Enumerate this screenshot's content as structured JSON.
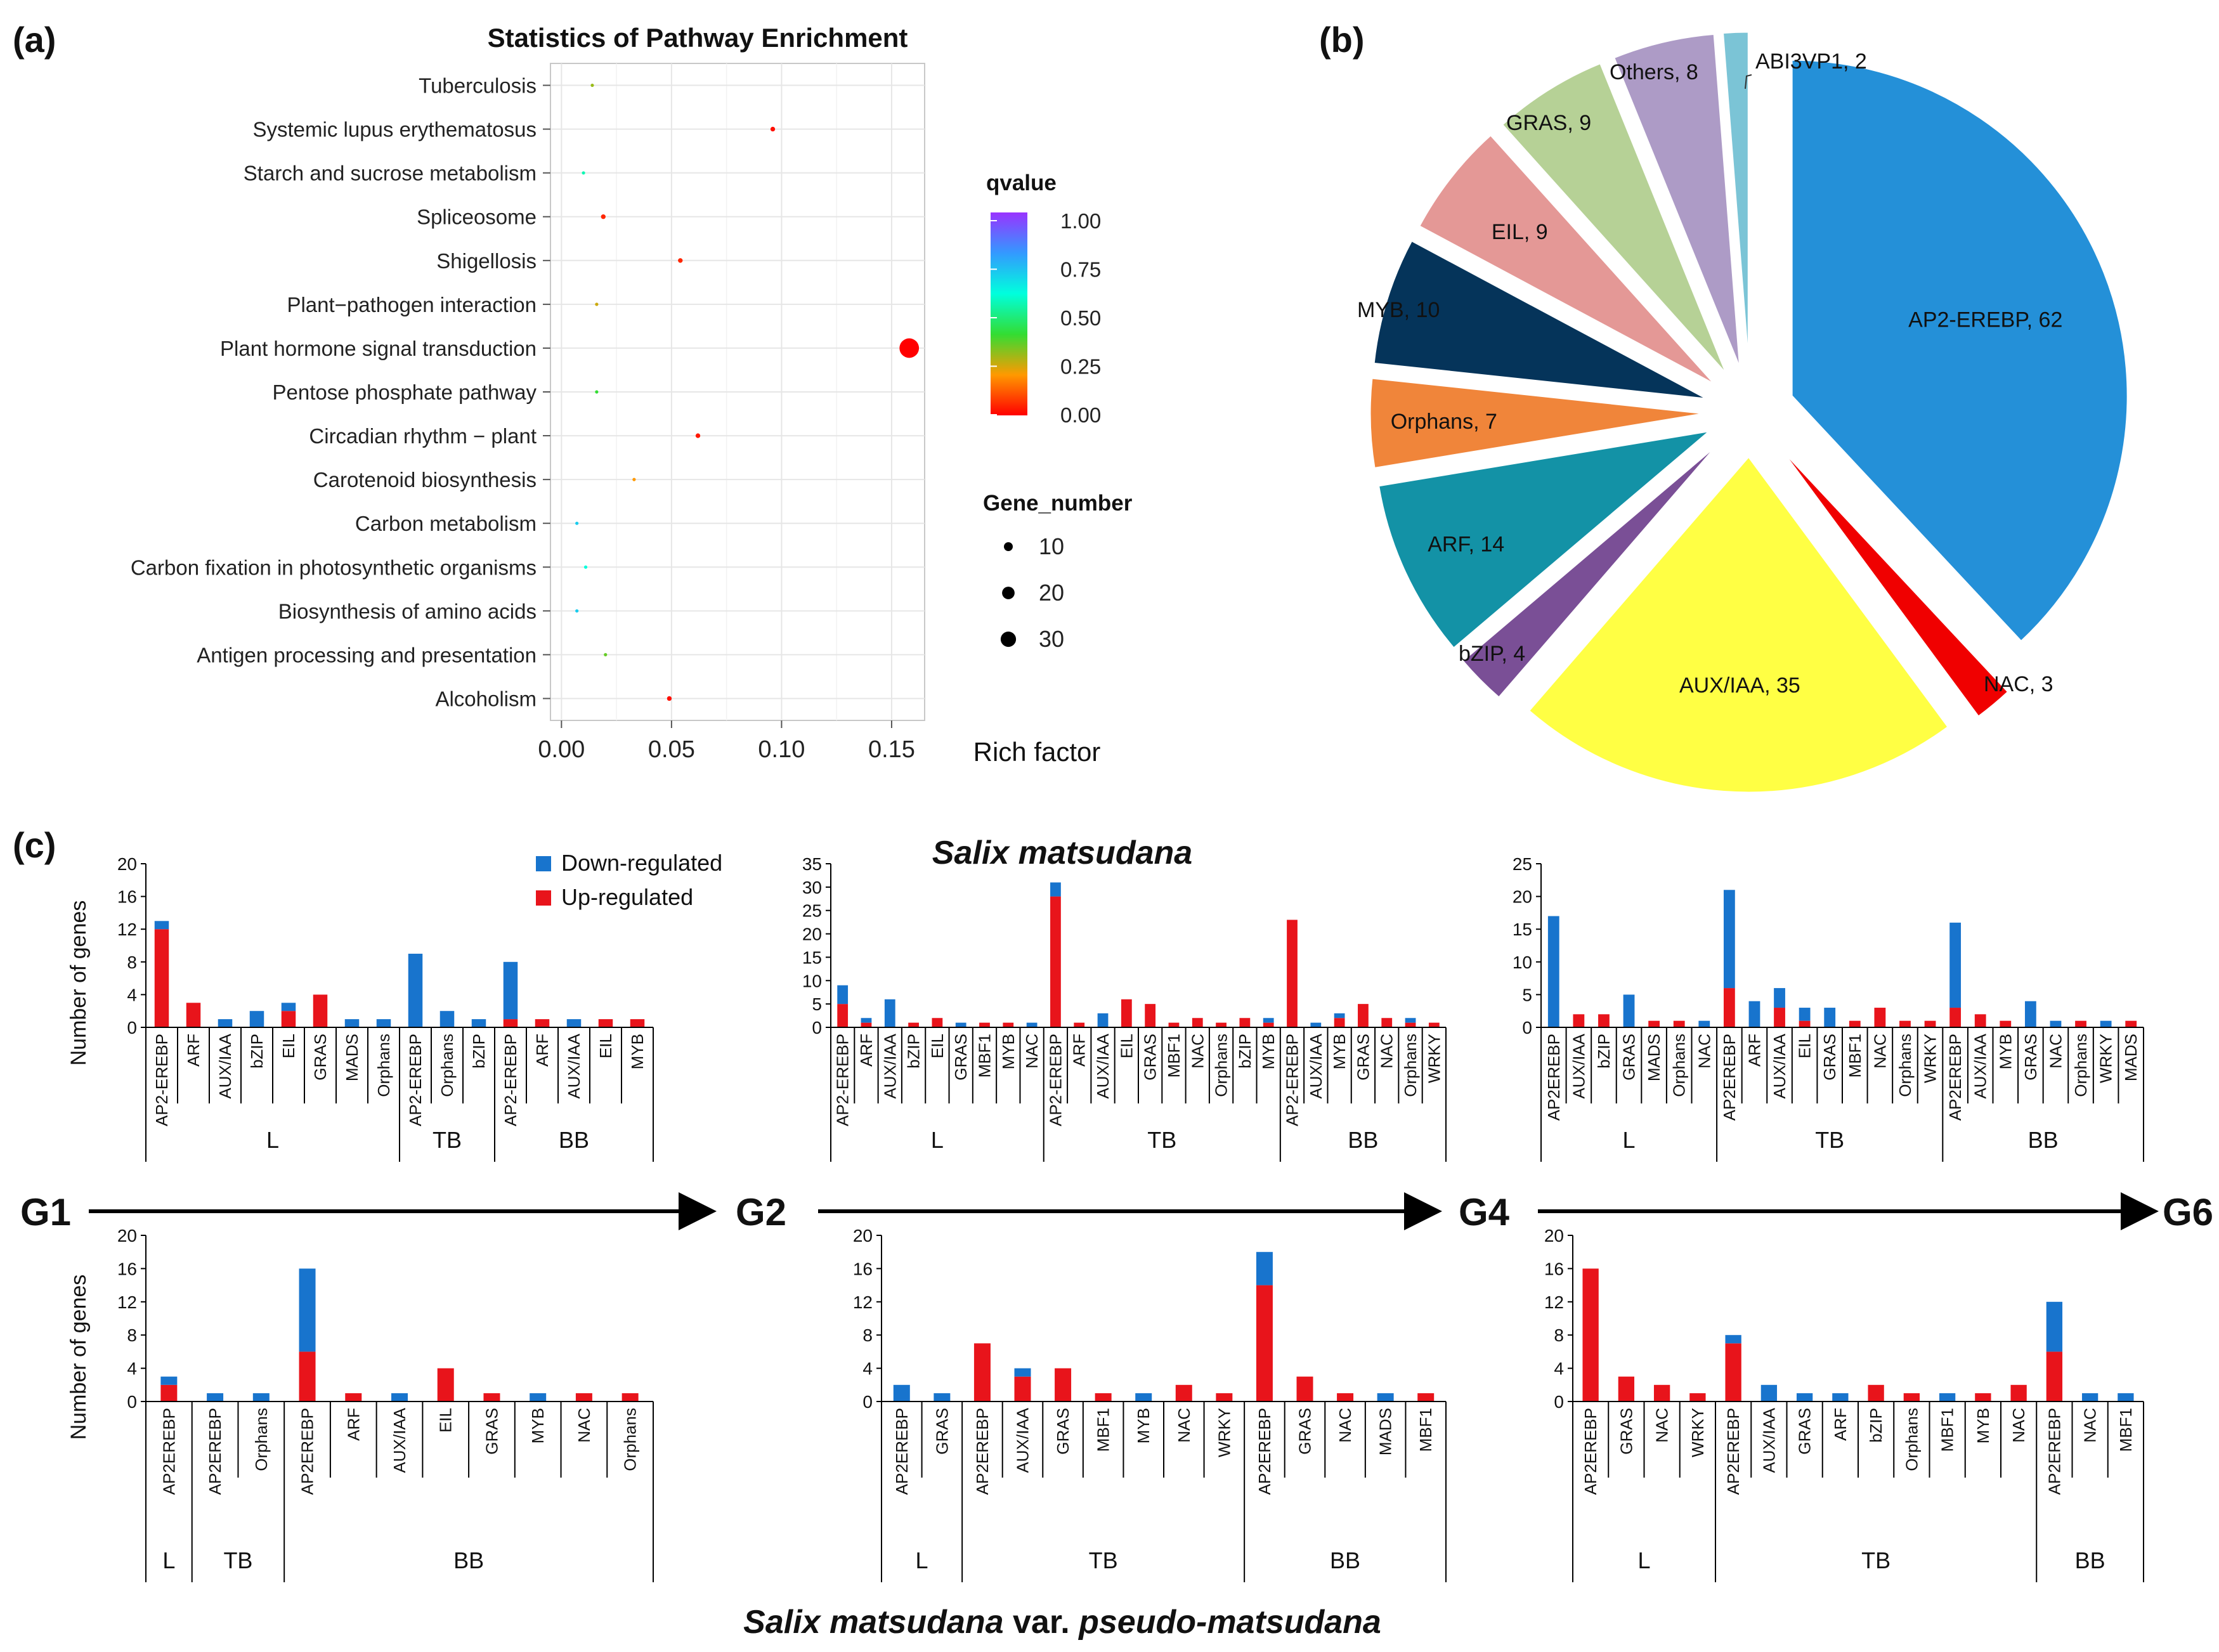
{
  "panel_labels": [
    "(a)",
    "(b)",
    "(c)"
  ],
  "colors": {
    "up": "#e8141b",
    "down": "#1874cd"
  },
  "chart_data": [
    {
      "id": "a",
      "type": "scatter",
      "title": "Statistics of Pathway Enrichment",
      "xlabel": "Rich factor",
      "ylabel": "",
      "xlim": [
        -0.005,
        0.165
      ],
      "xticks": [
        "0.00",
        "0.05",
        "0.10",
        "0.15"
      ],
      "grid": true,
      "legend_q_title": "qvalue",
      "legend_q_ticks": [
        "1.00",
        "0.75",
        "0.50",
        "0.25",
        "0.00"
      ],
      "legend_n_title": "Gene_number",
      "legend_n_ticks": [
        "10",
        "20",
        "30"
      ],
      "points": [
        {
          "term": "Tuberculosis",
          "x": 0.014,
          "q": 0.3,
          "n": 1
        },
        {
          "term": "Systemic lupus erythematosus",
          "x": 0.096,
          "q": 0.02,
          "n": 2
        },
        {
          "term": "Starch and sucrose metabolism",
          "x": 0.01,
          "q": 0.55,
          "n": 1
        },
        {
          "term": "Spliceosome",
          "x": 0.019,
          "q": 0.05,
          "n": 2
        },
        {
          "term": "Shigellosis",
          "x": 0.054,
          "q": 0.05,
          "n": 2
        },
        {
          "term": "Plant−pathogen interaction",
          "x": 0.016,
          "q": 0.25,
          "n": 1
        },
        {
          "term": "Plant hormone signal transduction",
          "x": 0.158,
          "q": 0.0,
          "n": 35
        },
        {
          "term": "Pentose phosphate pathway",
          "x": 0.016,
          "q": 0.4,
          "n": 1
        },
        {
          "term": "Circadian rhythm − plant",
          "x": 0.062,
          "q": 0.03,
          "n": 2
        },
        {
          "term": "Carotenoid biosynthesis",
          "x": 0.033,
          "q": 0.2,
          "n": 1
        },
        {
          "term": "Carbon metabolism",
          "x": 0.007,
          "q": 0.7,
          "n": 1
        },
        {
          "term": "Carbon fixation in photosynthetic organisms",
          "x": 0.011,
          "q": 0.6,
          "n": 1
        },
        {
          "term": "Biosynthesis of amino acids",
          "x": 0.007,
          "q": 0.7,
          "n": 1
        },
        {
          "term": "Antigen processing and presentation",
          "x": 0.02,
          "q": 0.35,
          "n": 1
        },
        {
          "term": "Alcoholism",
          "x": 0.049,
          "q": 0.02,
          "n": 2
        }
      ]
    },
    {
      "id": "b",
      "type": "pie",
      "slices": [
        {
          "label": "AP2-EREBP, 62",
          "value": 62,
          "color": "#2490d8"
        },
        {
          "label": "NAC, 3",
          "value": 3,
          "color": "#f00000"
        },
        {
          "label": "AUX/IAA, 35",
          "value": 35,
          "color": "#ffff44"
        },
        {
          "label": "bZIP, 4",
          "value": 4,
          "color": "#7a4f96"
        },
        {
          "label": "ARF, 14",
          "value": 14,
          "color": "#1392a6"
        },
        {
          "label": "Orphans, 7",
          "value": 7,
          "color": "#f0853a"
        },
        {
          "label": "MYB, 10",
          "value": 10,
          "color": "#05345a"
        },
        {
          "label": "EIL, 9",
          "value": 9,
          "color": "#e49896"
        },
        {
          "label": "GRAS, 9",
          "value": 9,
          "color": "#b6d196"
        },
        {
          "label": "Others, 8",
          "value": 8,
          "color": "#ad9bc6"
        },
        {
          "label": "ABI3VP1, 2",
          "value": 2,
          "color": "#7bc4d6"
        }
      ]
    },
    {
      "id": "c",
      "type": "bar",
      "stacked": true,
      "title": "Salix matsudana",
      "bottom_title_pre": "Salix matsudana",
      "bottom_title_mid": " var. ",
      "bottom_title_post": "pseudo-matsudana",
      "ylabel": "Number of genes",
      "legend": [
        "Down-regulated",
        "Up-regulated"
      ],
      "stages": [
        "G1",
        "G2",
        "G4",
        "G6"
      ],
      "subplots": [
        {
          "ylim": [
            0,
            20
          ],
          "yticks": [
            "0",
            "4",
            "8",
            "12",
            "16",
            "20"
          ],
          "categories": [
            "AP2-EREBP",
            "ARF",
            "AUX/IAA",
            "bZIP",
            "EIL",
            "GRAS",
            "MADS",
            "Orphans",
            "AP2-EREBP",
            "Orphans",
            "bZIP",
            "AP2-EREBP",
            "ARF",
            "AUX/IAA",
            "EIL",
            "MYB"
          ],
          "up": [
            12,
            3,
            0,
            0,
            2,
            4,
            0,
            0,
            0,
            0,
            0,
            1,
            1,
            0,
            1,
            1
          ],
          "down": [
            1,
            0,
            1,
            2,
            1,
            0,
            1,
            1,
            9,
            2,
            1,
            7,
            0,
            1,
            0,
            0
          ],
          "groups": [
            {
              "name": "L",
              "count": 8
            },
            {
              "name": "TB",
              "count": 3
            },
            {
              "name": "BB",
              "count": 5
            }
          ]
        },
        {
          "ylim": [
            0,
            35
          ],
          "yticks": [
            "0",
            "5",
            "10",
            "15",
            "20",
            "25",
            "30",
            "35"
          ],
          "categories": [
            "AP2-EREBP",
            "ARF",
            "AUX/IAA",
            "bZIP",
            "EIL",
            "GRAS",
            "MBF1",
            "MYB",
            "NAC",
            "AP2-EREBP",
            "ARF",
            "AUX/IAA",
            "EIL",
            "GRAS",
            "MBF1",
            "NAC",
            "Orphans",
            "bZIP",
            "MYB",
            "AP2-EREBP",
            "AUX/IAA",
            "MYB",
            "GRAS",
            "NAC",
            "Orphans",
            "WRKY"
          ],
          "up": [
            5,
            1,
            0,
            1,
            2,
            0,
            1,
            1,
            0,
            28,
            1,
            0,
            6,
            5,
            1,
            2,
            1,
            2,
            1,
            23,
            0,
            2,
            5,
            2,
            1,
            1
          ],
          "down": [
            4,
            1,
            6,
            0,
            0,
            1,
            0,
            0,
            1,
            3,
            0,
            3,
            0,
            0,
            0,
            0,
            0,
            0,
            1,
            0,
            1,
            1,
            0,
            0,
            1,
            0
          ],
          "groups": [
            {
              "name": "L",
              "count": 9
            },
            {
              "name": "TB",
              "count": 10
            },
            {
              "name": "BB",
              "count": 7
            }
          ]
        },
        {
          "ylim": [
            0,
            25
          ],
          "yticks": [
            "0",
            "5",
            "10",
            "15",
            "20",
            "25"
          ],
          "categories": [
            "AP2EREBP",
            "AUX/IAA",
            "bZIP",
            "GRAS",
            "MADS",
            "Orphans",
            "NAC",
            "AP2EREBP",
            "ARF",
            "AUX/IAA",
            "EIL",
            "GRAS",
            "MBF1",
            "NAC",
            "Orphans",
            "WRKY",
            "AP2EREBP",
            "AUX/IAA",
            "MYB",
            "GRAS",
            "NAC",
            "Orphans",
            "WRKY",
            "MADS"
          ],
          "up": [
            0,
            2,
            2,
            0,
            1,
            1,
            0,
            6,
            0,
            3,
            1,
            0,
            1,
            3,
            1,
            1,
            3,
            2,
            1,
            0,
            0,
            1,
            0,
            1
          ],
          "down": [
            17,
            0,
            0,
            5,
            0,
            0,
            1,
            15,
            4,
            3,
            2,
            3,
            0,
            0,
            0,
            0,
            13,
            0,
            0,
            4,
            1,
            0,
            1,
            0
          ],
          "groups": [
            {
              "name": "L",
              "count": 7
            },
            {
              "name": "TB",
              "count": 9
            },
            {
              "name": "BB",
              "count": 8
            }
          ]
        },
        {
          "ylim": [
            0,
            20
          ],
          "yticks": [
            "0",
            "4",
            "8",
            "12",
            "16",
            "20"
          ],
          "categories": [
            "AP2EREBP",
            "AP2EREBP",
            "Orphans",
            "AP2EREBP",
            "ARF",
            "AUX/IAA",
            "EIL",
            "GRAS",
            "MYB",
            "NAC",
            "Orphans"
          ],
          "up": [
            2,
            0,
            0,
            6,
            1,
            0,
            4,
            1,
            0,
            1,
            1
          ],
          "down": [
            1,
            1,
            1,
            10,
            0,
            1,
            0,
            0,
            1,
            0,
            0
          ],
          "groups": [
            {
              "name": "L",
              "count": 1
            },
            {
              "name": "TB",
              "count": 2
            },
            {
              "name": "BB",
              "count": 8
            }
          ]
        },
        {
          "ylim": [
            0,
            20
          ],
          "yticks": [
            "0",
            "4",
            "8",
            "12",
            "16",
            "20"
          ],
          "categories": [
            "AP2EREBP",
            "GRAS",
            "AP2EREBP",
            "AUX/IAA",
            "GRAS",
            "MBF1",
            "MYB",
            "NAC",
            "WRKY",
            "AP2EREBP",
            "GRAS",
            "NAC",
            "MADS",
            "MBF1"
          ],
          "up": [
            0,
            0,
            7,
            3,
            4,
            1,
            0,
            2,
            1,
            14,
            3,
            1,
            0,
            1
          ],
          "down": [
            2,
            1,
            0,
            1,
            0,
            0,
            1,
            0,
            0,
            4,
            0,
            0,
            1,
            0
          ],
          "groups": [
            {
              "name": "L",
              "count": 2
            },
            {
              "name": "TB",
              "count": 7
            },
            {
              "name": "BB",
              "count": 5
            }
          ]
        },
        {
          "ylim": [
            0,
            20
          ],
          "yticks": [
            "0",
            "4",
            "8",
            "12",
            "16",
            "20"
          ],
          "categories": [
            "AP2EREBP",
            "GRAS",
            "NAC",
            "WRKY",
            "AP2EREBP",
            "AUX/IAA",
            "GRAS",
            "ARF",
            "bZIP",
            "Orphans",
            "MBF1",
            "MYB",
            "NAC",
            "AP2EREBP",
            "NAC",
            "MBF1"
          ],
          "up": [
            16,
            3,
            2,
            1,
            7,
            0,
            0,
            0,
            2,
            1,
            0,
            1,
            2,
            6,
            0,
            0
          ],
          "down": [
            0,
            0,
            0,
            0,
            1,
            2,
            1,
            1,
            0,
            0,
            1,
            0,
            0,
            6,
            1,
            1
          ],
          "groups": [
            {
              "name": "L",
              "count": 4
            },
            {
              "name": "TB",
              "count": 9
            },
            {
              "name": "BB",
              "count": 3
            }
          ]
        }
      ]
    }
  ]
}
